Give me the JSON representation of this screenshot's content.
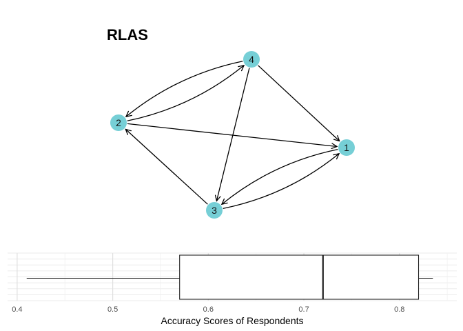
{
  "chart_data": [
    {
      "type": "network",
      "title": "RLAS",
      "nodes": [
        "1",
        "2",
        "3",
        "4"
      ],
      "edges": [
        {
          "from": "4",
          "to": "2"
        },
        {
          "from": "2",
          "to": "4"
        },
        {
          "from": "4",
          "to": "1"
        },
        {
          "from": "4",
          "to": "3"
        },
        {
          "from": "2",
          "to": "1"
        },
        {
          "from": "3",
          "to": "2"
        },
        {
          "from": "3",
          "to": "1"
        },
        {
          "from": "1",
          "to": "3"
        }
      ],
      "node_color": "#76cfd6"
    },
    {
      "type": "boxplot",
      "xlabel": "Accuracy Scores of Respondents",
      "xlim": [
        0.39,
        0.86
      ],
      "xticks": [
        0.4,
        0.5,
        0.6,
        0.7,
        0.8
      ],
      "stats": {
        "min": 0.41,
        "q1": 0.57,
        "median": 0.72,
        "q3": 0.82,
        "max": 0.835
      },
      "grid": true
    }
  ]
}
